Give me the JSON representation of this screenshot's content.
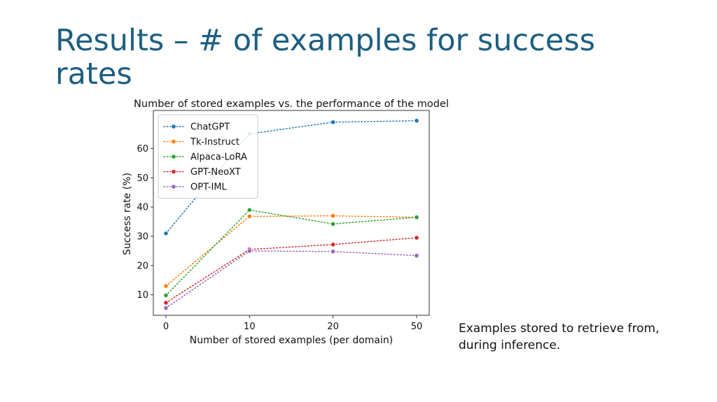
{
  "slide": {
    "title": "Results – # of examples for success rates",
    "note": "Examples stored to retrieve from, during inference."
  },
  "chart_data": {
    "type": "line",
    "title": "Number of stored examples vs. the performance of the model",
    "xlabel": "Number of stored examples (per domain)",
    "ylabel": "Success rate (%)",
    "categories": [
      "0",
      "10",
      "20",
      "50"
    ],
    "yticks": [
      10,
      20,
      30,
      40,
      50,
      60
    ],
    "ylim": [
      3,
      73
    ],
    "grid": false,
    "legend_position": "top-left",
    "line_style": "dotted",
    "series": [
      {
        "name": "ChatGPT",
        "color": "#1f77b4",
        "values": [
          31,
          65,
          69,
          69.5
        ]
      },
      {
        "name": "Tk-Instruct",
        "color": "#ff7f0e",
        "values": [
          13,
          36.8,
          37,
          36.5
        ]
      },
      {
        "name": "Alpaca-LoRA",
        "color": "#2ca02c",
        "values": [
          9.8,
          39,
          34.2,
          36.5
        ]
      },
      {
        "name": "GPT-NeoXT",
        "color": "#d62728",
        "values": [
          7.3,
          25.5,
          27.2,
          29.5
        ]
      },
      {
        "name": "OPT-IML",
        "color": "#9467bd",
        "values": [
          5.5,
          25,
          24.8,
          23.4
        ]
      }
    ]
  }
}
